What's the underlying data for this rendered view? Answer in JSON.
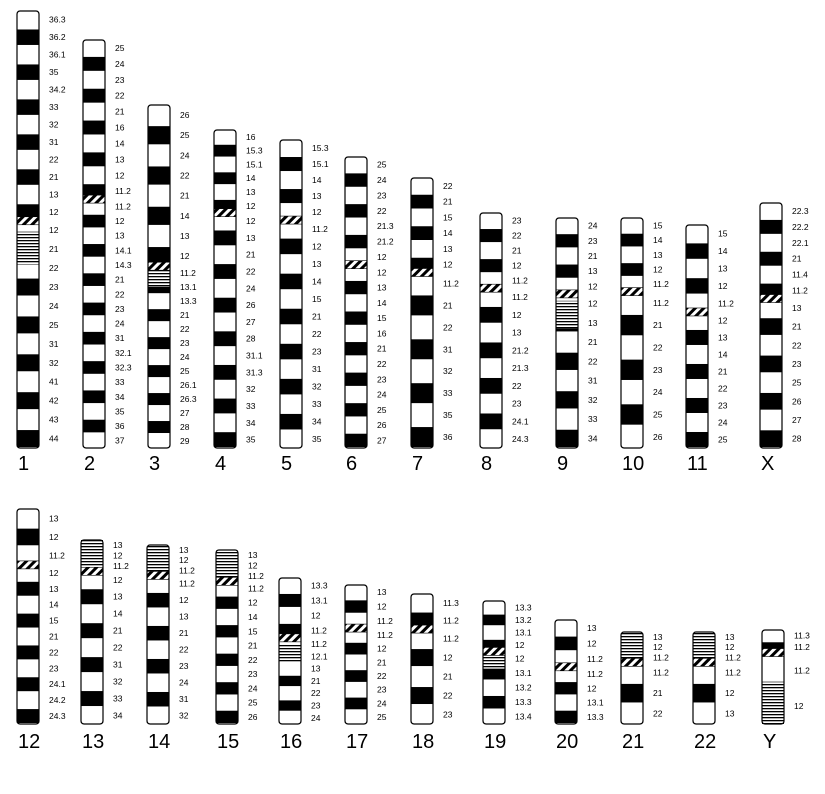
{
  "diagram": {
    "type": "human karyotype ideogram",
    "colors": {
      "dark": "#000000",
      "light": "#ffffff",
      "outline": "#000000"
    },
    "band_styles": [
      "light",
      "dark",
      "centromere (diagonal hatch)",
      "heterochromatin (horizontal stripes)"
    ],
    "chromosomes": [
      {
        "name": "1",
        "p_labels": [
          "36.3",
          "36.2",
          "36.1",
          "35",
          "34.2",
          "33",
          "32",
          "31",
          "22",
          "21",
          "13",
          "12"
        ],
        "q_labels": [
          "12",
          "21",
          "22",
          "23",
          "24",
          "25",
          "31",
          "32",
          "41",
          "42",
          "43",
          "44"
        ]
      },
      {
        "name": "2",
        "p_labels": [
          "25",
          "24",
          "23",
          "22",
          "21",
          "16",
          "14",
          "13",
          "12",
          "11.2"
        ],
        "q_labels": [
          "11.2",
          "12",
          "13",
          "14.1",
          "14.3",
          "21",
          "22",
          "23",
          "24",
          "31",
          "32.1",
          "32.3",
          "33",
          "34",
          "35",
          "36",
          "37"
        ]
      },
      {
        "name": "3",
        "p_labels": [
          "26",
          "25",
          "24",
          "22",
          "21",
          "14",
          "13",
          "12"
        ],
        "q_labels": [
          "11.2",
          "13.1",
          "13.3",
          "21",
          "22",
          "23",
          "24",
          "25",
          "26.1",
          "26.3",
          "27",
          "28",
          "29"
        ]
      },
      {
        "name": "4",
        "p_labels": [
          "16",
          "15.3",
          "15.1",
          "14",
          "13",
          "12"
        ],
        "q_labels": [
          "12",
          "13",
          "21",
          "22",
          "24",
          "26",
          "27",
          "28",
          "31.1",
          "31.3",
          "32",
          "33",
          "34",
          "35"
        ]
      },
      {
        "name": "5",
        "p_labels": [
          "15.3",
          "15.1",
          "14",
          "13",
          "12"
        ],
        "q_labels": [
          "11.2",
          "12",
          "13",
          "14",
          "15",
          "21",
          "22",
          "23",
          "31",
          "32",
          "33",
          "34",
          "35"
        ]
      },
      {
        "name": "6",
        "p_labels": [
          "25",
          "24",
          "23",
          "22",
          "21.3",
          "21.2",
          "12"
        ],
        "q_labels": [
          "12",
          "13",
          "14",
          "15",
          "16",
          "21",
          "22",
          "23",
          "24",
          "25",
          "26",
          "27"
        ]
      },
      {
        "name": "7",
        "p_labels": [
          "22",
          "21",
          "15",
          "14",
          "13",
          "12"
        ],
        "q_labels": [
          "11.2",
          "21",
          "22",
          "31",
          "32",
          "33",
          "35",
          "36"
        ]
      },
      {
        "name": "8",
        "p_labels": [
          "23",
          "22",
          "21",
          "12",
          "11.2"
        ],
        "q_labels": [
          "11.2",
          "12",
          "13",
          "21.2",
          "21.3",
          "22",
          "23",
          "24.1",
          "24.3"
        ]
      },
      {
        "name": "9",
        "p_labels": [
          "24",
          "23",
          "21",
          "13",
          "12"
        ],
        "q_labels": [
          "12",
          "13",
          "21",
          "22",
          "31",
          "32",
          "33",
          "34"
        ]
      },
      {
        "name": "10",
        "p_labels": [
          "15",
          "14",
          "13",
          "12",
          "11.2"
        ],
        "q_labels": [
          "11.2",
          "21",
          "22",
          "23",
          "24",
          "25",
          "26"
        ]
      },
      {
        "name": "11",
        "p_labels": [
          "15",
          "14",
          "13",
          "12",
          "11.2"
        ],
        "q_labels": [
          "12",
          "13",
          "14",
          "21",
          "22",
          "23",
          "24",
          "25"
        ]
      },
      {
        "name": "X",
        "p_labels": [
          "22.3",
          "22.2",
          "22.1",
          "21",
          "11.4",
          "11.2"
        ],
        "q_labels": [
          "13",
          "21",
          "22",
          "23",
          "25",
          "26",
          "27",
          "28"
        ]
      },
      {
        "name": "12",
        "p_labels": [
          "13",
          "12",
          "11.2"
        ],
        "q_labels": [
          "12",
          "13",
          "14",
          "15",
          "21",
          "22",
          "23",
          "24.1",
          "24.2",
          "24.3"
        ]
      },
      {
        "name": "13",
        "p_labels": [
          "13",
          "12",
          "11.2"
        ],
        "q_labels": [
          "12",
          "13",
          "14",
          "21",
          "22",
          "31",
          "32",
          "33",
          "34"
        ]
      },
      {
        "name": "14",
        "p_labels": [
          "13",
          "12",
          "11.2"
        ],
        "q_labels": [
          "11.2",
          "12",
          "13",
          "21",
          "22",
          "23",
          "24",
          "31",
          "32"
        ]
      },
      {
        "name": "15",
        "p_labels": [
          "13",
          "12",
          "11.2"
        ],
        "q_labels": [
          "11.2",
          "12",
          "14",
          "15",
          "21",
          "22",
          "23",
          "24",
          "25",
          "26"
        ]
      },
      {
        "name": "16",
        "p_labels": [
          "13.3",
          "13.1",
          "12",
          "11.2"
        ],
        "q_labels": [
          "11.2",
          "12.1",
          "13",
          "21",
          "22",
          "23",
          "24"
        ]
      },
      {
        "name": "17",
        "p_labels": [
          "13",
          "12",
          "11.2"
        ],
        "q_labels": [
          "11.2",
          "12",
          "21",
          "22",
          "23",
          "24",
          "25"
        ]
      },
      {
        "name": "18",
        "p_labels": [
          "11.3",
          "11.2"
        ],
        "q_labels": [
          "11.2",
          "12",
          "21",
          "22",
          "23"
        ]
      },
      {
        "name": "19",
        "p_labels": [
          "13.3",
          "13.2",
          "13.1",
          "12"
        ],
        "q_labels": [
          "12",
          "13.1",
          "13.2",
          "13.3",
          "13.4"
        ]
      },
      {
        "name": "20",
        "p_labels": [
          "13",
          "12",
          "11.2"
        ],
        "q_labels": [
          "11.2",
          "12",
          "13.1",
          "13.3"
        ]
      },
      {
        "name": "21",
        "p_labels": [
          "13",
          "12",
          "11.2"
        ],
        "q_labels": [
          "11.2",
          "21",
          "22"
        ]
      },
      {
        "name": "22",
        "p_labels": [
          "13",
          "12",
          "11.2"
        ],
        "q_labels": [
          "11.2",
          "12",
          "13"
        ]
      },
      {
        "name": "Y",
        "p_labels": [
          "11.3",
          "11.2"
        ],
        "q_labels": [
          "11.2",
          "12"
        ]
      }
    ]
  }
}
